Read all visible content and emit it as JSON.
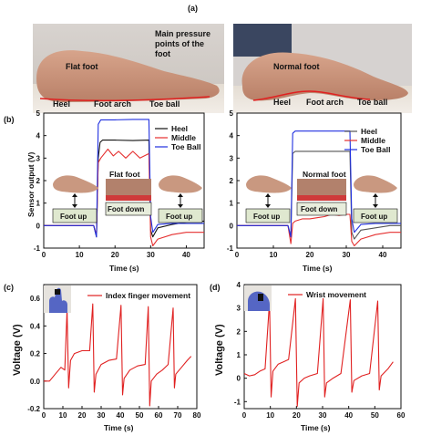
{
  "panels": {
    "a": {
      "label": "(a)",
      "photo1": {
        "foot_type": "Flat foot",
        "pressure_note_lines": [
          "Main pressure",
          "points of the",
          "foot"
        ],
        "points": [
          "Heel",
          "Foot arch",
          "Toe ball"
        ]
      },
      "photo2": {
        "foot_type": "Normal foot",
        "points": [
          "Heel",
          "Foot arch",
          "Toe ball"
        ]
      }
    },
    "b": {
      "label": "(b)"
    },
    "c": {
      "label": "(c)"
    },
    "d": {
      "label": "(d)"
    }
  },
  "colors": {
    "heel": "#111111",
    "middle": "#e53030",
    "toeball": "#2030e0",
    "red_trace": "#e02020"
  },
  "chart_data": [
    {
      "id": "b-left",
      "type": "line",
      "title": "Flat foot",
      "xlabel": "Time (s)",
      "ylabel": "Sensor output (V)",
      "xlim": [
        0,
        45
      ],
      "ylim": [
        -1,
        5
      ],
      "xticks": [
        0,
        10,
        20,
        30,
        40
      ],
      "yticks": [
        -1,
        0,
        1,
        2,
        3,
        4,
        5
      ],
      "legend": [
        "Heel",
        "Middle",
        "Toe Ball"
      ],
      "legend_position": "top-right",
      "annotations": [
        "Foot up",
        "Foot down",
        "Foot up"
      ],
      "series": [
        {
          "name": "Heel",
          "color": "#111111",
          "x": [
            0,
            14,
            14.8,
            15.3,
            15.8,
            16.5,
            20,
            25,
            29.5,
            30,
            30.6,
            32,
            36,
            40,
            45
          ],
          "y": [
            0,
            0,
            -0.5,
            3.0,
            3.7,
            3.8,
            3.8,
            3.78,
            3.8,
            -0.2,
            -0.5,
            -0.1,
            0.05,
            0.15,
            0.2
          ]
        },
        {
          "name": "Middle",
          "color": "#e53030",
          "x": [
            0,
            14,
            14.8,
            15.3,
            16,
            18,
            19.5,
            21,
            23,
            25,
            27,
            29.5,
            30,
            30.6,
            32,
            36,
            40,
            45
          ],
          "y": [
            0,
            0,
            -0.4,
            2.8,
            3.0,
            3.4,
            3.1,
            3.3,
            3.0,
            3.3,
            3.0,
            3.2,
            -0.5,
            -0.9,
            -0.6,
            -0.4,
            -0.3,
            -0.3
          ]
        },
        {
          "name": "Toe Ball",
          "color": "#2030e0",
          "x": [
            0,
            14,
            14.8,
            15.3,
            16,
            20,
            25,
            29.5,
            30,
            30.6,
            32,
            36,
            40,
            45
          ],
          "y": [
            0,
            0,
            -0.5,
            4.5,
            4.7,
            4.7,
            4.72,
            4.72,
            0.4,
            -0.3,
            0.05,
            0.1,
            0.1,
            0.1
          ]
        }
      ]
    },
    {
      "id": "b-right",
      "type": "line",
      "title": "Normal foot",
      "xlabel": "Time (s)",
      "ylabel": "",
      "xlim": [
        0,
        45
      ],
      "ylim": [
        -1,
        5
      ],
      "xticks": [
        0,
        10,
        20,
        30,
        40
      ],
      "yticks": [
        -1,
        0,
        1,
        2,
        3,
        4,
        5
      ],
      "legend": [
        "Heel",
        "Middle",
        "Toe Ball"
      ],
      "legend_position": "top-right",
      "annotations": [
        "Foot up",
        "Foot down",
        "Foot up"
      ],
      "series": [
        {
          "name": "Heel",
          "color": "#555555",
          "x": [
            0,
            14,
            14.8,
            15.3,
            16,
            20,
            25,
            31,
            31.5,
            32.2,
            34,
            38,
            42,
            45
          ],
          "y": [
            0,
            0,
            -0.5,
            3.2,
            3.3,
            3.3,
            3.3,
            3.3,
            -0.3,
            -0.6,
            -0.2,
            -0.1,
            0,
            0
          ]
        },
        {
          "name": "Middle",
          "color": "#e53030",
          "x": [
            0,
            14,
            14.8,
            15.3,
            16,
            18,
            20,
            22,
            24,
            26,
            28,
            30,
            31,
            31.5,
            32.2,
            34,
            38,
            42,
            45
          ],
          "y": [
            0,
            0,
            -0.8,
            0.1,
            0.2,
            0.3,
            0.3,
            0.35,
            0.4,
            0.5,
            0.45,
            0.5,
            0.5,
            -0.7,
            -0.9,
            -0.6,
            -0.4,
            -0.3,
            -0.3
          ]
        },
        {
          "name": "Toe Ball",
          "color": "#2030e0",
          "x": [
            0,
            14,
            14.8,
            15.3,
            16,
            20,
            25,
            31,
            31.5,
            32.2,
            34,
            38,
            42,
            45
          ],
          "y": [
            0,
            0,
            -0.5,
            4.1,
            4.2,
            4.2,
            4.2,
            4.2,
            0.3,
            -0.3,
            0.05,
            0.1,
            0.1,
            0.1
          ]
        }
      ]
    },
    {
      "id": "c",
      "type": "line",
      "xlabel": "Time (s)",
      "ylabel": "Voltage (V)",
      "xlim": [
        0,
        80
      ],
      "ylim": [
        -0.2,
        0.7
      ],
      "xticks": [
        0,
        10,
        20,
        30,
        40,
        50,
        60,
        70,
        80
      ],
      "yticks": [
        -0.2,
        0.0,
        0.2,
        0.4,
        0.6
      ],
      "legend": [
        "Index finger movement"
      ],
      "legend_position": "top-right",
      "series": [
        {
          "name": "Index finger movement",
          "color": "#e02020",
          "x": [
            0,
            3,
            6,
            9,
            11,
            12.2,
            13,
            14,
            16,
            20,
            24,
            25.6,
            26.4,
            27.3,
            30,
            34,
            38,
            40.4,
            41.2,
            42,
            45,
            49,
            53,
            54.6,
            55.4,
            56.2,
            59,
            62,
            65,
            67.6,
            68.3,
            69,
            72,
            75,
            77
          ],
          "y": [
            0.0,
            0.0,
            0.05,
            0.1,
            0.08,
            0.52,
            -0.05,
            0.15,
            0.2,
            0.22,
            0.22,
            0.56,
            -0.08,
            0.05,
            0.12,
            0.15,
            0.16,
            0.55,
            -0.1,
            0.02,
            0.08,
            0.11,
            0.12,
            0.54,
            -0.18,
            0.0,
            0.05,
            0.08,
            0.12,
            0.53,
            -0.05,
            0.05,
            0.1,
            0.15,
            0.18
          ]
        }
      ]
    },
    {
      "id": "d",
      "type": "line",
      "xlabel": "Time (s)",
      "ylabel": "Voltage (V)",
      "xlim": [
        0,
        60
      ],
      "ylim": [
        -1.3,
        4
      ],
      "xticks": [
        0,
        10,
        20,
        30,
        40,
        50,
        60
      ],
      "yticks": [
        -1,
        0,
        1,
        2,
        3,
        4
      ],
      "legend": [
        "Wrist movement"
      ],
      "legend_position": "top-right",
      "series": [
        {
          "name": "Wrist movement",
          "color": "#e02020",
          "x": [
            0,
            2,
            4,
            6,
            8,
            9.7,
            10.3,
            11,
            13,
            15,
            17,
            19.6,
            20.3,
            21,
            23,
            25,
            28,
            30.2,
            30.8,
            31.5,
            34,
            37,
            40.6,
            41.2,
            42,
            45,
            48,
            51.1,
            51.7,
            52.4,
            55,
            57
          ],
          "y": [
            0.2,
            0.1,
            0.15,
            0.3,
            0.4,
            3.3,
            -0.8,
            0.3,
            0.6,
            0.7,
            0.8,
            3.4,
            -1.2,
            -0.2,
            0.0,
            0.1,
            0.2,
            3.4,
            -0.8,
            -0.2,
            0.0,
            0.2,
            3.35,
            -0.6,
            -0.1,
            0.1,
            0.2,
            3.3,
            -0.5,
            0.1,
            0.4,
            0.7
          ]
        }
      ]
    }
  ]
}
